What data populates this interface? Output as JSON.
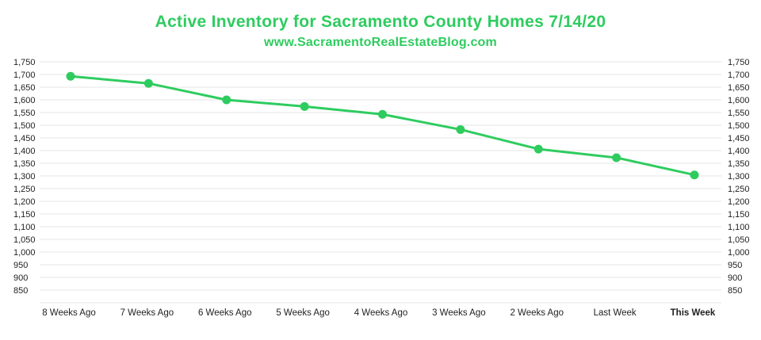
{
  "chart_data": {
    "type": "line",
    "title": "Active Inventory for Sacramento County Homes 7/14/20",
    "subtitle": "www.SacramentoRealEstateBlog.com",
    "categories": [
      "8 Weeks Ago",
      "7 Weeks Ago",
      "6 Weeks Ago",
      "5 Weeks Ago",
      "4 Weeks Ago",
      "3 Weeks Ago",
      "2 Weeks Ago",
      "Last Week",
      "This Week"
    ],
    "series": [
      {
        "values": [
          1693,
          1665,
          1600,
          1574,
          1543,
          1483,
          1406,
          1372,
          1304
        ]
      }
    ],
    "yticks": [
      "1,750",
      "1,700",
      "1,650",
      "1,600",
      "1,550",
      "1,500",
      "1,450",
      "1,400",
      "1,350",
      "1,300",
      "1,250",
      "1,200",
      "1,150",
      "1,100",
      "1,050",
      "1,000",
      "950",
      "900",
      "850"
    ],
    "ylim": [
      800,
      1750
    ],
    "grid": true,
    "secondary_y_axis": true,
    "colors": {
      "line": "#2ecc5f",
      "title": "#2ecc5f",
      "highlight_label": "#2ecc5f",
      "grid": "#e6e6e6"
    },
    "highlight_category": "This Week"
  }
}
